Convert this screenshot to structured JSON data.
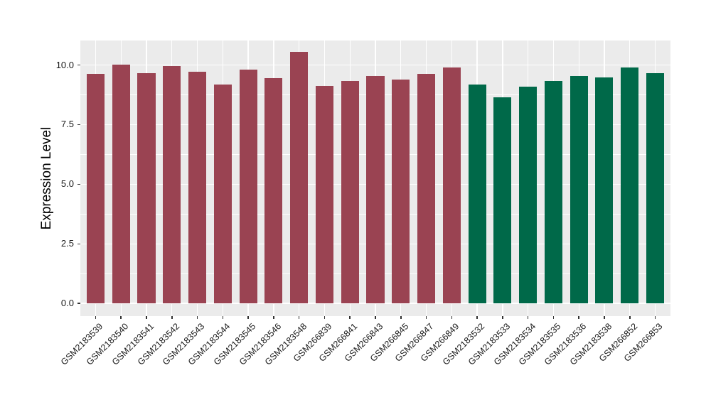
{
  "chart_data": {
    "type": "bar",
    "title": "",
    "xlabel": "",
    "ylabel": "Expression Level",
    "ylim": [
      -0.53,
      11.03
    ],
    "yticks": [
      0.0,
      2.5,
      5.0,
      7.5,
      10.0
    ],
    "ytick_labels": [
      "0.0",
      "2.5",
      "5.0",
      "7.5",
      "10.0"
    ],
    "minor_yticks": [
      1.25,
      3.75,
      6.25,
      8.75
    ],
    "grid": "on",
    "legend_position": "none",
    "panel_background": "#EBEBEB",
    "gridline_color": "#FFFFFF",
    "tick_mark_color": "#333333",
    "tick_label_color": "#1A1A1A",
    "axis_title_color": "#000000",
    "bar_width_fraction": 0.7,
    "categories": [
      "GSM2183539",
      "GSM2183540",
      "GSM2183541",
      "GSM2183542",
      "GSM2183543",
      "GSM2183544",
      "GSM2183545",
      "GSM2183546",
      "GSM2183548",
      "GSM266839",
      "GSM266841",
      "GSM266843",
      "GSM266845",
      "GSM266847",
      "GSM266849",
      "GSM2183532",
      "GSM2183533",
      "GSM2183534",
      "GSM2183535",
      "GSM2183536",
      "GSM2183538",
      "GSM266852",
      "GSM266853"
    ],
    "values": [
      9.63,
      10.01,
      9.66,
      9.96,
      9.72,
      9.17,
      9.8,
      9.44,
      10.54,
      9.12,
      9.33,
      9.55,
      9.38,
      9.63,
      9.89,
      9.17,
      8.64,
      9.09,
      9.33,
      9.53,
      9.49,
      9.89,
      9.67
    ],
    "groups": [
      "maroon",
      "maroon",
      "maroon",
      "maroon",
      "maroon",
      "maroon",
      "maroon",
      "maroon",
      "maroon",
      "maroon",
      "maroon",
      "maroon",
      "maroon",
      "maroon",
      "maroon",
      "green",
      "green",
      "green",
      "green",
      "green",
      "green",
      "green",
      "green"
    ],
    "palette": {
      "maroon": "#9A4352",
      "green": "#006949"
    }
  }
}
